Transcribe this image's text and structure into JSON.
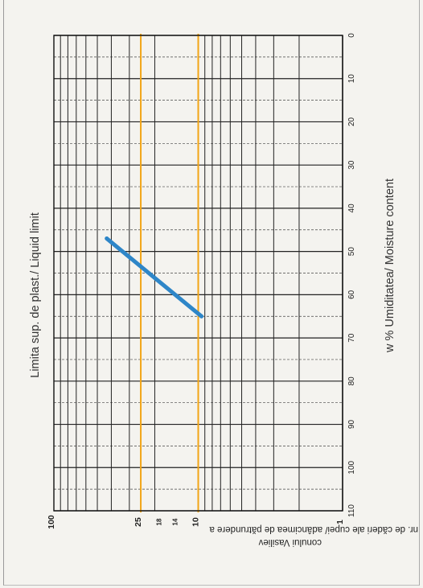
{
  "chart_data": {
    "type": "line",
    "title": "Limita sup. de plast./ Liquid limit",
    "xlabel": "w % Umiditatea/ Moisture content",
    "ylabel_line1": "nr. de căderi ale cupei/ adâncimea de pătrundere a",
    "ylabel_line2": "conului Vasiliev",
    "x_ticks": [
      0,
      10,
      20,
      30,
      40,
      50,
      60,
      70,
      80,
      90,
      100,
      110
    ],
    "xlim": [
      0,
      110
    ],
    "y_scale": "log",
    "ylim": [
      1,
      100
    ],
    "y_ticks": [
      {
        "value": 1,
        "label": "1"
      },
      {
        "value": 10,
        "label": "10"
      },
      {
        "value": 14,
        "label": "14"
      },
      {
        "value": 18,
        "label": "18"
      },
      {
        "value": 25,
        "label": "25"
      },
      {
        "value": 100,
        "label": "100"
      }
    ],
    "reference_lines": [
      {
        "y": 25,
        "color": "#f2a516"
      },
      {
        "y": 10,
        "color": "#f2a516"
      }
    ],
    "series": [
      {
        "color": "#2e86c8",
        "x": [
          47,
          65
        ],
        "y": [
          43,
          9.5
        ]
      }
    ],
    "grid": true
  }
}
